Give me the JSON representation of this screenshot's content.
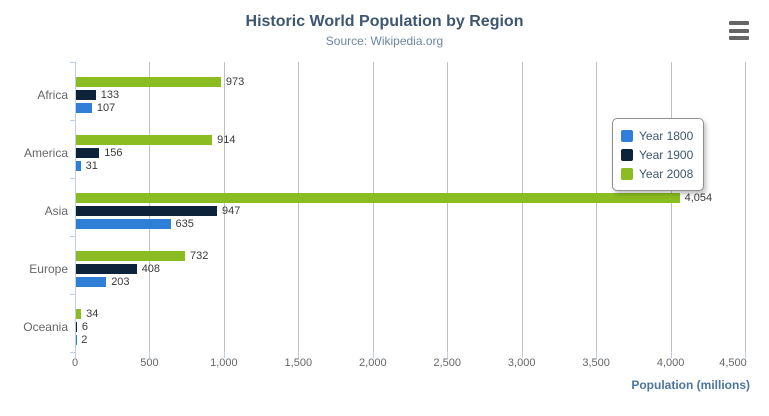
{
  "header": {
    "title": "Historic World Population by Region",
    "subtitle": "Source: Wikipedia.org"
  },
  "context_menu": {
    "icon": "hamburger-icon",
    "color": "#666666"
  },
  "chart_data": {
    "type": "bar",
    "orientation": "horizontal",
    "title": "Historic World Population by Region",
    "subtitle": "Source: Wikipedia.org",
    "xlabel": "Population (millions)",
    "xlim": [
      0,
      4500
    ],
    "xtick_interval": 500,
    "xticks": [
      "0",
      "500",
      "1,000",
      "1,500",
      "2,000",
      "2,500",
      "3,000",
      "3,500",
      "4,000",
      "4,500"
    ],
    "categories": [
      "Africa",
      "America",
      "Asia",
      "Europe",
      "Oceania"
    ],
    "series": [
      {
        "name": "Year 1800",
        "color": "#2f7ed8",
        "values": [
          107,
          31,
          635,
          203,
          2
        ],
        "labels": [
          "107",
          "31",
          "635",
          "203",
          "2"
        ]
      },
      {
        "name": "Year 1900",
        "color": "#0d233a",
        "values": [
          133,
          156,
          947,
          408,
          6
        ],
        "labels": [
          "133",
          "156",
          "947",
          "408",
          "6"
        ]
      },
      {
        "name": "Year 2008",
        "color": "#8bbc21",
        "values": [
          973,
          914,
          4054,
          732,
          34
        ],
        "labels": [
          "973",
          "914",
          "4,054",
          "732",
          "34"
        ]
      }
    ],
    "grid": true,
    "grid_color": "#C0C0C0",
    "axis_line_color": "#C0D0E0",
    "axis_label_color": "#666666",
    "data_label_color": "#3a3a3a",
    "xlabel_color": "#4D759E",
    "legend_position": "right-middle",
    "legend_text_color": "#3E576F"
  },
  "legend": {
    "items": [
      {
        "label": "Year 1800",
        "color": "#2f7ed8"
      },
      {
        "label": "Year 1900",
        "color": "#0d233a"
      },
      {
        "label": "Year 2008",
        "color": "#8bbc21"
      }
    ]
  }
}
